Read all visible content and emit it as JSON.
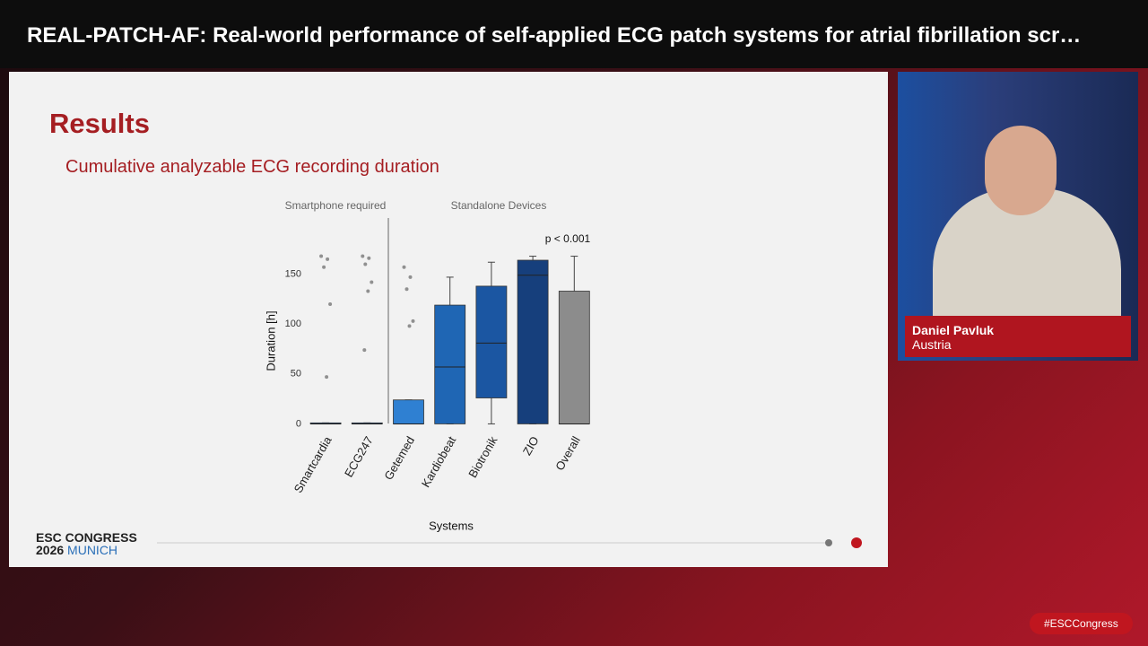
{
  "header": {
    "title": "REAL-PATCH-AF: Real-world performance of self-applied ECG patch systems for atrial fibrillation scr…"
  },
  "slide": {
    "title": "Results",
    "subtitle": "Cumulative analyzable ECG recording duration"
  },
  "chart_data": {
    "type": "box",
    "title": "Cumulative analyzable ECG recording duration",
    "group_labels": [
      "Smartphone required",
      "Standalone Devices"
    ],
    "annotation": "p < 0.001",
    "x_label": "Systems",
    "y_label": "Duration [h]",
    "categories": [
      "Smartcardia",
      "ECG247",
      "Getemed",
      "Kardiobeat",
      "Biotronik",
      "ZIO",
      "Overall"
    ],
    "colors": [
      "#1e4f8c",
      "#1e4f8c",
      "#2f80d2",
      "#1f66b4",
      "#1b56a2",
      "#163f7c",
      "#8c8c8c"
    ],
    "whisker_low": [
      0,
      0,
      0,
      0,
      0,
      0,
      0
    ],
    "q1": [
      0,
      0,
      0,
      0,
      26,
      0,
      0
    ],
    "median": [
      0,
      0,
      0,
      57,
      81,
      149,
      0
    ],
    "q3": [
      1,
      1,
      24,
      119,
      138,
      164,
      133
    ],
    "whisker_high": [
      1,
      1,
      24,
      147,
      162,
      168,
      168
    ],
    "outliers": [
      [
        168,
        165,
        157,
        120,
        47
      ],
      [
        168,
        166,
        160,
        142,
        133,
        74
      ],
      [
        157,
        147,
        135,
        103,
        98
      ],
      [],
      [],
      [],
      []
    ],
    "ylim": [
      -5,
      173
    ],
    "yticks": [
      0,
      50,
      100,
      150
    ]
  },
  "speaker": {
    "name": "Daniel Pavluk",
    "country": "Austria"
  },
  "branding": {
    "line1": "ESC CONGRESS",
    "year": "2026",
    "city": "MUNICH"
  },
  "hashtag": "#ESCCongress"
}
